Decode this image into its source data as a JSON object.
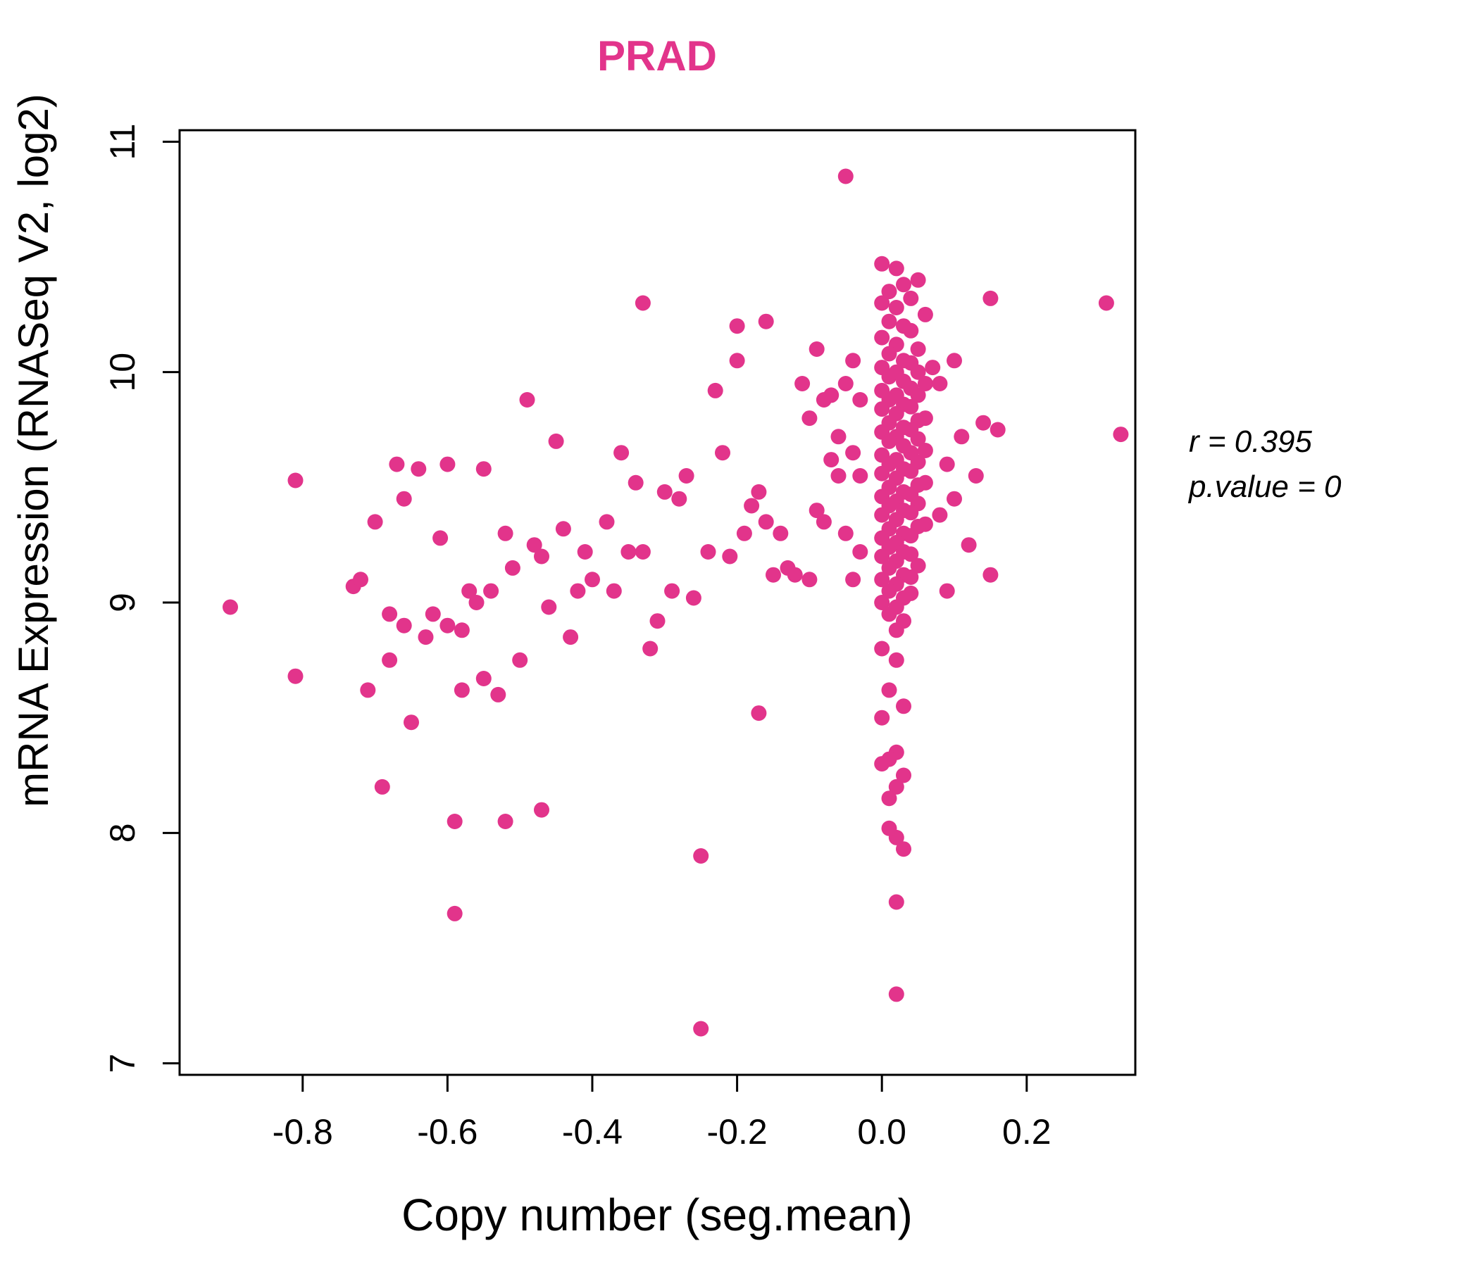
{
  "chart_data": {
    "type": "scatter",
    "title": "PRAD",
    "xlabel": "Copy number (seg.mean)",
    "ylabel": "mRNA Expression (RNASeq V2, log2)",
    "xlim": [
      -0.97,
      0.35
    ],
    "ylim": [
      6.95,
      11.05
    ],
    "xticks": [
      -0.8,
      -0.6,
      -0.4,
      -0.2,
      0.0,
      0.2
    ],
    "xtick_labels": [
      "-0.8",
      "-0.6",
      "-0.4",
      "-0.2",
      "0.0",
      "0.2"
    ],
    "yticks": [
      7,
      8,
      9,
      10,
      11
    ],
    "ytick_labels": [
      "7",
      "8",
      "9",
      "10",
      "11"
    ],
    "grid": false,
    "legend": "none",
    "point_color": "#E2348B",
    "title_color": "#E2348B",
    "axis_color": "#000000",
    "annotations": [
      "r = 0.395",
      "p.value = 0"
    ],
    "points": [
      [
        -0.9,
        8.98
      ],
      [
        -0.81,
        9.53
      ],
      [
        -0.81,
        8.68
      ],
      [
        -0.73,
        9.07
      ],
      [
        -0.72,
        9.1
      ],
      [
        -0.71,
        8.62
      ],
      [
        -0.7,
        9.35
      ],
      [
        -0.69,
        8.2
      ],
      [
        -0.68,
        8.95
      ],
      [
        -0.68,
        8.75
      ],
      [
        -0.67,
        9.6
      ],
      [
        -0.66,
        8.9
      ],
      [
        -0.66,
        9.45
      ],
      [
        -0.65,
        8.48
      ],
      [
        -0.64,
        9.58
      ],
      [
        -0.63,
        8.85
      ],
      [
        -0.62,
        8.95
      ],
      [
        -0.61,
        9.28
      ],
      [
        -0.6,
        9.6
      ],
      [
        -0.6,
        8.9
      ],
      [
        -0.59,
        7.65
      ],
      [
        -0.59,
        8.05
      ],
      [
        -0.58,
        8.62
      ],
      [
        -0.58,
        8.88
      ],
      [
        -0.57,
        9.05
      ],
      [
        -0.56,
        9.0
      ],
      [
        -0.55,
        8.67
      ],
      [
        -0.55,
        9.58
      ],
      [
        -0.54,
        9.05
      ],
      [
        -0.53,
        8.6
      ],
      [
        -0.52,
        9.3
      ],
      [
        -0.52,
        8.05
      ],
      [
        -0.51,
        9.15
      ],
      [
        -0.5,
        8.75
      ],
      [
        -0.49,
        9.88
      ],
      [
        -0.48,
        9.25
      ],
      [
        -0.47,
        8.1
      ],
      [
        -0.47,
        9.2
      ],
      [
        -0.46,
        8.98
      ],
      [
        -0.45,
        9.7
      ],
      [
        -0.44,
        9.32
      ],
      [
        -0.43,
        8.85
      ],
      [
        -0.42,
        9.05
      ],
      [
        -0.41,
        9.22
      ],
      [
        -0.4,
        9.1
      ],
      [
        -0.38,
        9.35
      ],
      [
        -0.37,
        9.05
      ],
      [
        -0.36,
        9.65
      ],
      [
        -0.35,
        9.22
      ],
      [
        -0.34,
        9.52
      ],
      [
        -0.33,
        10.3
      ],
      [
        -0.33,
        9.22
      ],
      [
        -0.32,
        8.8
      ],
      [
        -0.31,
        8.92
      ],
      [
        -0.3,
        9.48
      ],
      [
        -0.29,
        9.05
      ],
      [
        -0.28,
        9.45
      ],
      [
        -0.27,
        9.55
      ],
      [
        -0.26,
        9.02
      ],
      [
        -0.25,
        7.15
      ],
      [
        -0.25,
        7.9
      ],
      [
        -0.24,
        9.22
      ],
      [
        -0.23,
        9.92
      ],
      [
        -0.22,
        9.65
      ],
      [
        -0.21,
        9.2
      ],
      [
        -0.2,
        10.2
      ],
      [
        -0.2,
        10.05
      ],
      [
        -0.19,
        9.3
      ],
      [
        -0.18,
        9.42
      ],
      [
        -0.17,
        9.48
      ],
      [
        -0.17,
        8.52
      ],
      [
        -0.16,
        10.22
      ],
      [
        -0.16,
        9.35
      ],
      [
        -0.15,
        9.12
      ],
      [
        -0.14,
        9.3
      ],
      [
        -0.13,
        9.15
      ],
      [
        -0.12,
        9.12
      ],
      [
        -0.11,
        9.95
      ],
      [
        -0.1,
        9.8
      ],
      [
        -0.1,
        9.1
      ],
      [
        -0.09,
        10.1
      ],
      [
        -0.09,
        9.4
      ],
      [
        -0.08,
        9.88
      ],
      [
        -0.08,
        9.35
      ],
      [
        -0.07,
        9.62
      ],
      [
        -0.07,
        9.9
      ],
      [
        -0.06,
        9.55
      ],
      [
        -0.06,
        9.72
      ],
      [
        -0.05,
        10.85
      ],
      [
        -0.05,
        9.95
      ],
      [
        -0.05,
        9.3
      ],
      [
        -0.04,
        9.65
      ],
      [
        -0.04,
        10.05
      ],
      [
        -0.04,
        9.1
      ],
      [
        -0.03,
        9.55
      ],
      [
        -0.03,
        9.88
      ],
      [
        -0.03,
        9.22
      ],
      [
        0.0,
        10.47
      ],
      [
        0.02,
        10.45
      ],
      [
        0.01,
        10.35
      ],
      [
        0.03,
        10.38
      ],
      [
        0.0,
        10.3
      ],
      [
        0.02,
        10.28
      ],
      [
        0.04,
        10.32
      ],
      [
        0.05,
        10.4
      ],
      [
        0.01,
        10.22
      ],
      [
        0.03,
        10.2
      ],
      [
        0.0,
        10.15
      ],
      [
        0.02,
        10.12
      ],
      [
        0.04,
        10.18
      ],
      [
        0.06,
        10.25
      ],
      [
        0.01,
        10.08
      ],
      [
        0.03,
        10.05
      ],
      [
        0.05,
        10.1
      ],
      [
        0.0,
        10.02
      ],
      [
        0.02,
        10.0
      ],
      [
        0.04,
        10.04
      ],
      [
        0.01,
        9.98
      ],
      [
        0.03,
        9.96
      ],
      [
        0.05,
        10.0
      ],
      [
        0.06,
        9.95
      ],
      [
        0.0,
        9.92
      ],
      [
        0.02,
        9.9
      ],
      [
        0.04,
        9.93
      ],
      [
        0.01,
        9.88
      ],
      [
        0.03,
        9.86
      ],
      [
        0.05,
        9.9
      ],
      [
        0.0,
        9.84
      ],
      [
        0.02,
        9.82
      ],
      [
        0.04,
        9.85
      ],
      [
        0.06,
        9.8
      ],
      [
        0.01,
        9.78
      ],
      [
        0.03,
        9.76
      ],
      [
        0.05,
        9.79
      ],
      [
        0.0,
        9.74
      ],
      [
        0.02,
        9.72
      ],
      [
        0.04,
        9.75
      ],
      [
        0.01,
        9.7
      ],
      [
        0.03,
        9.68
      ],
      [
        0.05,
        9.71
      ],
      [
        0.06,
        9.66
      ],
      [
        0.0,
        9.64
      ],
      [
        0.02,
        9.62
      ],
      [
        0.04,
        9.65
      ],
      [
        0.01,
        9.6
      ],
      [
        0.03,
        9.58
      ],
      [
        0.05,
        9.61
      ],
      [
        0.0,
        9.56
      ],
      [
        0.02,
        9.54
      ],
      [
        0.04,
        9.57
      ],
      [
        0.06,
        9.52
      ],
      [
        0.01,
        9.5
      ],
      [
        0.03,
        9.48
      ],
      [
        0.05,
        9.51
      ],
      [
        0.0,
        9.46
      ],
      [
        0.02,
        9.44
      ],
      [
        0.04,
        9.47
      ],
      [
        0.01,
        9.42
      ],
      [
        0.03,
        9.4
      ],
      [
        0.05,
        9.43
      ],
      [
        0.0,
        9.38
      ],
      [
        0.02,
        9.36
      ],
      [
        0.04,
        9.39
      ],
      [
        0.06,
        9.34
      ],
      [
        0.01,
        9.32
      ],
      [
        0.03,
        9.3
      ],
      [
        0.05,
        9.33
      ],
      [
        0.0,
        9.28
      ],
      [
        0.02,
        9.26
      ],
      [
        0.04,
        9.29
      ],
      [
        0.01,
        9.24
      ],
      [
        0.03,
        9.22
      ],
      [
        0.0,
        9.2
      ],
      [
        0.02,
        9.18
      ],
      [
        0.04,
        9.21
      ],
      [
        0.01,
        9.15
      ],
      [
        0.03,
        9.12
      ],
      [
        0.05,
        9.16
      ],
      [
        0.0,
        9.1
      ],
      [
        0.02,
        9.08
      ],
      [
        0.04,
        9.11
      ],
      [
        0.01,
        9.05
      ],
      [
        0.03,
        9.02
      ],
      [
        0.0,
        9.0
      ],
      [
        0.02,
        8.98
      ],
      [
        0.04,
        9.04
      ],
      [
        0.01,
        8.95
      ],
      [
        0.03,
        8.92
      ],
      [
        0.02,
        8.88
      ],
      [
        0.08,
        9.95
      ],
      [
        0.09,
        9.6
      ],
      [
        0.1,
        9.45
      ],
      [
        0.1,
        10.05
      ],
      [
        0.11,
        9.72
      ],
      [
        0.12,
        9.25
      ],
      [
        0.13,
        9.55
      ],
      [
        0.14,
        9.78
      ],
      [
        0.15,
        10.32
      ],
      [
        0.15,
        9.12
      ],
      [
        0.16,
        9.75
      ],
      [
        0.31,
        10.3
      ],
      [
        0.33,
        9.73
      ],
      [
        0.07,
        10.02
      ],
      [
        0.08,
        9.38
      ],
      [
        0.09,
        9.05
      ],
      [
        0.0,
        8.8
      ],
      [
        0.02,
        8.75
      ],
      [
        0.01,
        8.62
      ],
      [
        0.03,
        8.55
      ],
      [
        0.0,
        8.5
      ],
      [
        0.02,
        8.35
      ],
      [
        0.01,
        8.32
      ],
      [
        0.0,
        8.3
      ],
      [
        0.02,
        8.2
      ],
      [
        0.01,
        8.15
      ],
      [
        0.03,
        8.25
      ],
      [
        0.02,
        7.98
      ],
      [
        0.03,
        7.93
      ],
      [
        0.01,
        8.02
      ],
      [
        0.02,
        7.7
      ],
      [
        0.02,
        7.3
      ]
    ]
  }
}
